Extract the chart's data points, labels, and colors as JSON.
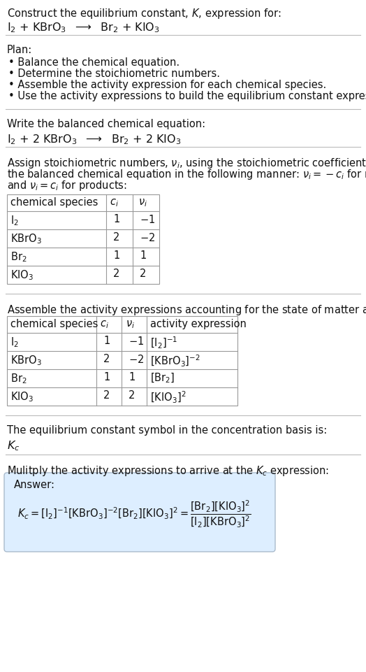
{
  "bg_color": "#ffffff",
  "text_color": "#000000",
  "section_line_color": "#cccccc",
  "answer_box_color": "#ddeeff",
  "answer_box_edge": "#aabbcc",
  "title_text": "Construct the equilibrium constant, $K$, expression for:",
  "reaction_unbalanced": "$\\mathrm{I_2}$ + $\\mathrm{KBrO_3}$  $\\longrightarrow$  $\\mathrm{Br_2}$ + $\\mathrm{KIO_3}$",
  "plan_header": "Plan:",
  "plan_items": [
    "• Balance the chemical equation.",
    "• Determine the stoichiometric numbers.",
    "• Assemble the activity expression for each chemical species.",
    "• Use the activity expressions to build the equilibrium constant expression."
  ],
  "balanced_header": "Write the balanced chemical equation:",
  "reaction_balanced": "$\\mathrm{I_2}$ + 2 $\\mathrm{KBrO_3}$  $\\longrightarrow$  $\\mathrm{Br_2}$ + 2 $\\mathrm{KIO_3}$",
  "stoich_lines": [
    "Assign stoichiometric numbers, $\\nu_i$, using the stoichiometric coefficients, $c_i$, from",
    "the balanced chemical equation in the following manner: $\\nu_i = -c_i$ for reactants",
    "and $\\nu_i = c_i$ for products:"
  ],
  "table1_cols": [
    "chemical species",
    "$c_i$",
    "$\\nu_i$"
  ],
  "table1_rows": [
    [
      "$\\mathrm{I_2}$",
      "1",
      "$-1$"
    ],
    [
      "$\\mathrm{KBrO_3}$",
      "2",
      "$-2$"
    ],
    [
      "$\\mathrm{Br_2}$",
      "1",
      "1"
    ],
    [
      "$\\mathrm{KIO_3}$",
      "2",
      "2"
    ]
  ],
  "activity_header": "Assemble the activity expressions accounting for the state of matter and $\\nu_i$:",
  "table2_cols": [
    "chemical species",
    "$c_i$",
    "$\\nu_i$",
    "activity expression"
  ],
  "table2_rows": [
    [
      "$\\mathrm{I_2}$",
      "1",
      "$-1$",
      "$[\\mathrm{I_2}]^{-1}$"
    ],
    [
      "$\\mathrm{KBrO_3}$",
      "2",
      "$-2$",
      "$[\\mathrm{KBrO_3}]^{-2}$"
    ],
    [
      "$\\mathrm{Br_2}$",
      "1",
      "1",
      "$[\\mathrm{Br_2}]$"
    ],
    [
      "$\\mathrm{KIO_3}$",
      "2",
      "2",
      "$[\\mathrm{KIO_3}]^2$"
    ]
  ],
  "kc_header": "The equilibrium constant symbol in the concentration basis is:",
  "kc_symbol": "$K_c$",
  "multiply_header": "Mulitply the activity expressions to arrive at the $K_c$ expression:",
  "answer_label": "Answer:"
}
